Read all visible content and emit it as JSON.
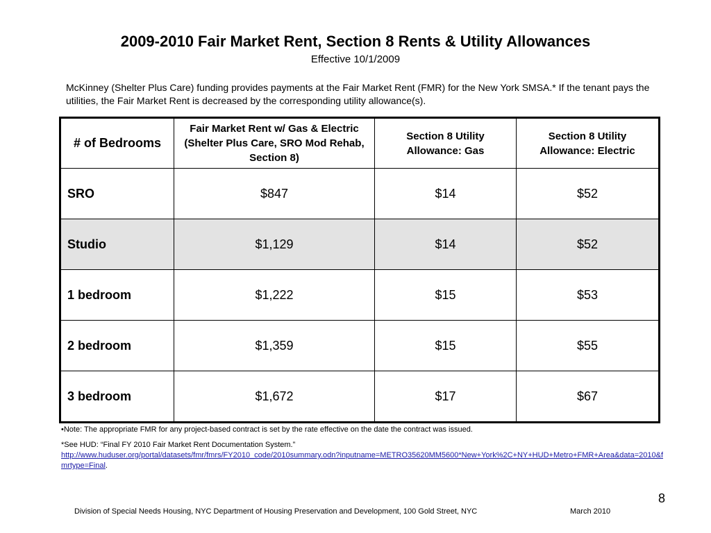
{
  "header": {
    "title": "2009-2010 Fair Market Rent, Section 8 Rents & Utility Allowances",
    "subtitle": "Effective 10/1/2009"
  },
  "intro": {
    "text": "McKinney (Shelter Plus Care) funding provides payments at the Fair Market Rent (FMR) for the New York SMSA.*  If the tenant pays the utilities, the Fair Market Rent is decreased by the corresponding utility allowance(s)."
  },
  "table": {
    "headers": [
      "# of Bedrooms",
      "Fair Market Rent w/ Gas & Electric (Shelter Plus Care, SRO Mod Rehab, Section 8)",
      "Section 8 Utility Allowance:  Gas",
      "Section 8 Utility Allowance: Electric"
    ],
    "rows": [
      {
        "bedrooms": "SRO",
        "fmr": "$847",
        "gas": "$14",
        "electric": "$52"
      },
      {
        "bedrooms": "Studio",
        "fmr": "$1,129",
        "gas": "$14",
        "electric": "$52"
      },
      {
        "bedrooms": "1 bedroom",
        "fmr": "$1,222",
        "gas": "$15",
        "electric": "$53"
      },
      {
        "bedrooms": "2 bedroom",
        "fmr": "$1,359",
        "gas": "$15",
        "electric": "$55"
      },
      {
        "bedrooms": "3 bedroom",
        "fmr": "$1,672",
        "gas": "$17",
        "electric": "$67"
      }
    ]
  },
  "notes": {
    "note1": "•Note:  The appropriate FMR for any project-based contract is set by the rate effective on the date the contract was issued.",
    "note2_text": "*See HUD: “Final FY 2010 Fair Market Rent Documentation System.”",
    "note2_link": "http://www.huduser.org/portal/datasets/fmr/fmrs/FY2010_code/2010summary.odn?inputname=METRO35620MM5600*New+York%2C+NY+HUD+Metro+FMR+Area&data=2010&fmrtype=Final",
    "note2_end": "."
  },
  "footer": {
    "page_number": "8",
    "org": "Division of Special Needs Housing, NYC Department of Housing Preservation and Development, 100 Gold Street, NYC",
    "date": "March 2010"
  }
}
